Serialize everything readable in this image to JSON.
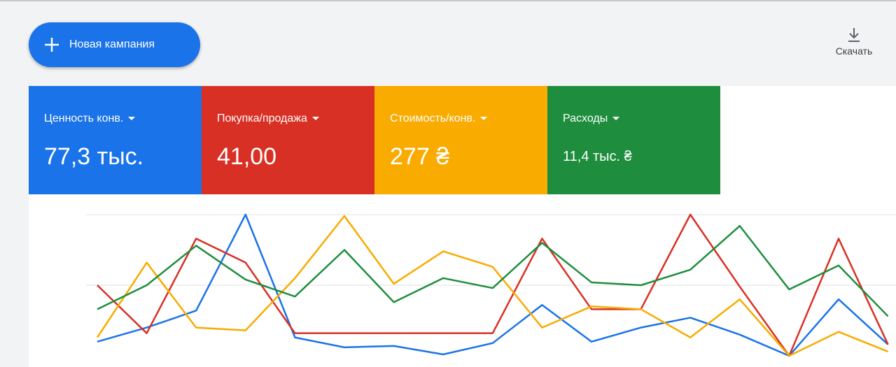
{
  "toolbar": {
    "new_campaign": "Новая кампания",
    "download": "Скачать"
  },
  "cards": [
    {
      "label": "Ценность конв.",
      "value": "77,3 тыс.",
      "color": "#1a73e8"
    },
    {
      "label": "Покупка/продажа",
      "value": "41,00",
      "color": "#d93025"
    },
    {
      "label": "Стоимость/конв.",
      "value": "277 ₴",
      "color": "#f9ab00"
    },
    {
      "label": "Расходы",
      "value": "11,4 тыс. ₴",
      "color": "#1e8e3e"
    }
  ],
  "chart_data": {
    "type": "line",
    "categories": [
      null,
      null,
      null,
      null,
      null,
      null,
      null,
      null,
      null,
      null,
      null,
      null,
      null,
      null,
      null,
      null,
      null
    ],
    "ylim": [
      0,
      100
    ],
    "yticks": [
      50,
      100
    ],
    "grid": true,
    "series": [
      {
        "color": "#1a73e8",
        "values": [
          10,
          20,
          32,
          100,
          13,
          6,
          7,
          1,
          9,
          36,
          10,
          20,
          27,
          15,
          0,
          40,
          8
        ]
      },
      {
        "color": "#d93025",
        "values": [
          50,
          16,
          83,
          66,
          16,
          16,
          16,
          16,
          16,
          83,
          33,
          33,
          100,
          49,
          0,
          83,
          8
        ]
      },
      {
        "color": "#f9ab00",
        "values": [
          13,
          66,
          20,
          18,
          55,
          99,
          51,
          74,
          63,
          20,
          35,
          33,
          13,
          40,
          0,
          17,
          3
        ]
      },
      {
        "color": "#1e8e3e",
        "values": [
          33,
          50,
          78,
          54,
          42,
          75,
          38,
          55,
          48,
          80,
          52,
          50,
          61,
          92,
          47,
          64,
          28
        ]
      }
    ]
  }
}
